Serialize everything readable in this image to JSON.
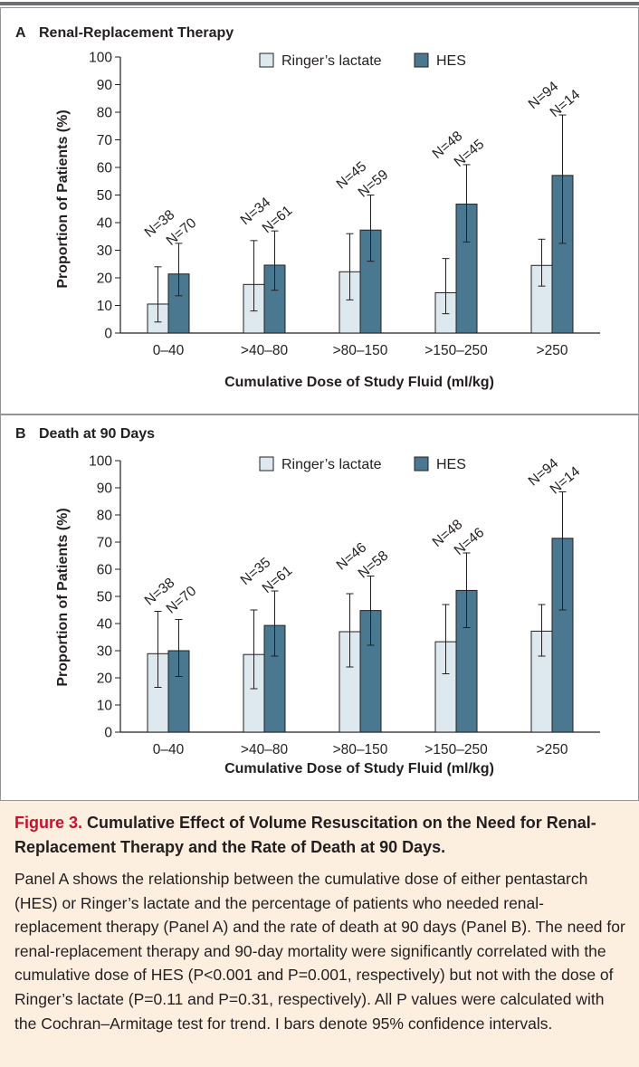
{
  "figure": {
    "label": "Figure 3.",
    "title": "Cumulative Effect of Volume Resuscitation on the Need for Renal-Replacement Therapy and the Rate of Death at 90 Days.",
    "caption": "Panel A shows the relationship between the cumulative dose of either pentastarch (HES) or Ringer’s lactate and the percentage of patients who needed renal-replacement therapy (Panel A) and the rate of death at 90 days (Panel B). The need for renal-replacement therapy and 90-day mortality were significantly correlated with the cumulative dose of HES (P<0.001 and P=0.001, respectively) but not with the dose of Ringer’s lactate (P=0.11 and P=0.31, respectively). All P values were calculated with the Cochran–Armitage test for trend. I bars denote 95% confidence intervals."
  },
  "colors": {
    "ringers": "#dde9ee",
    "hes": "#4a7891",
    "caption_bg": "#fcefe0",
    "figure_label": "#c8102e"
  },
  "chart_data": [
    {
      "panel": "A",
      "title": "Renal-Replacement Therapy",
      "type": "bar",
      "xlabel": "Cumulative Dose of Study Fluid (ml/kg)",
      "ylabel": "Proportion of Patients (%)",
      "ylim": [
        0,
        100
      ],
      "yticks": [
        0,
        10,
        20,
        30,
        40,
        50,
        60,
        70,
        80,
        90,
        100
      ],
      "categories": [
        "0–40",
        ">40–80",
        ">80–150",
        ">150–250",
        ">250"
      ],
      "legend": "top",
      "series": [
        {
          "name": "Ringer’s lactate",
          "values": [
            10.5,
            17.6,
            22.2,
            14.6,
            24.5
          ],
          "ci_low": [
            4,
            8,
            12,
            7,
            17
          ],
          "ci_high": [
            24,
            33.5,
            36,
            27,
            34
          ],
          "n_labels": [
            "N=38",
            "N=34",
            "N=45",
            "N=48",
            "N=94"
          ]
        },
        {
          "name": "HES",
          "values": [
            21.4,
            24.6,
            37.3,
            46.7,
            57.1
          ],
          "ci_low": [
            13.5,
            15.5,
            26,
            33,
            32.5
          ],
          "ci_high": [
            32.5,
            37,
            50,
            61,
            79
          ],
          "n_labels": [
            "N=70",
            "N=61",
            "N=59",
            "N=45",
            "N=14"
          ]
        }
      ]
    },
    {
      "panel": "B",
      "title": "Death at 90 Days",
      "type": "bar",
      "xlabel": "Cumulative Dose of Study Fluid (ml/kg)",
      "ylabel": "Proportion of Patients (%)",
      "ylim": [
        0,
        100
      ],
      "yticks": [
        0,
        10,
        20,
        30,
        40,
        50,
        60,
        70,
        80,
        90,
        100
      ],
      "categories": [
        "0–40",
        ">40–80",
        ">80–150",
        ">150–250",
        ">250"
      ],
      "legend": "top",
      "series": [
        {
          "name": "Ringer’s lactate",
          "values": [
            28.9,
            28.6,
            37.0,
            33.3,
            37.2
          ],
          "ci_low": [
            16.5,
            16,
            24,
            21.5,
            28
          ],
          "ci_high": [
            44.5,
            45,
            51,
            47,
            47
          ],
          "n_labels": [
            "N=38",
            "N=35",
            "N=46",
            "N=48",
            "N=94"
          ]
        },
        {
          "name": "HES",
          "values": [
            30.0,
            39.3,
            44.8,
            52.2,
            71.4
          ],
          "ci_low": [
            20.5,
            28,
            32,
            38.5,
            45
          ],
          "ci_high": [
            41.5,
            52,
            57.5,
            66,
            88.5
          ],
          "n_labels": [
            "N=70",
            "N=61",
            "N=58",
            "N=46",
            "N=14"
          ]
        }
      ]
    }
  ]
}
